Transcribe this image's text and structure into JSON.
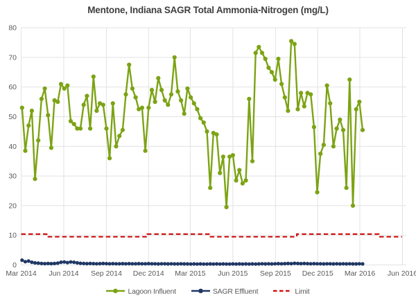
{
  "title": "Mentone, Indiana SAGR Total Ammonia-Nitrogen (mg/L)",
  "colors": {
    "influent": "#7CA314",
    "effluent": "#1F3864",
    "limit": "#CE1111",
    "grid": "#E2E2E2",
    "axis_text": "#595959",
    "title_text": "#3F3F3F",
    "background": "#FFFFFF"
  },
  "legend": {
    "items": [
      {
        "label": "Lagoon Influent",
        "series": "influent",
        "swatch": "line-dot"
      },
      {
        "label": "SAGR Effluent",
        "series": "effluent",
        "swatch": "line-dot"
      },
      {
        "label": "Limit",
        "series": "limit",
        "swatch": "dashed-line"
      }
    ]
  },
  "chart_data": {
    "type": "line",
    "title": "Mentone, Indiana SAGR Total Ammonia-Nitrogen (mg/L)",
    "ylabel": "",
    "xlabel": "",
    "grid": true,
    "legend_position": "bottom",
    "y_axis": {
      "min": 0,
      "max": 80,
      "ticks": [
        0,
        10,
        20,
        30,
        40,
        50,
        60,
        70,
        80
      ]
    },
    "x_axis": {
      "tick_labels": [
        "Mar 2014",
        "Jun 2014",
        "Sep 2014",
        "Dec 2014",
        "Mar 2015",
        "Jun 2015",
        "Sep 2015",
        "Dec 2015",
        "Mar 2016",
        "Jun 2016"
      ],
      "tick_days": [
        0,
        92,
        184,
        275,
        365,
        457,
        549,
        640,
        731,
        823
      ],
      "span_days": 823
    },
    "sampling": "weekly",
    "series": [
      {
        "name": "Lagoon Influent",
        "style": "line-markers",
        "color": "#7CA314",
        "start_day": 2,
        "step_days": 7,
        "values": [
          53,
          38.5,
          47,
          52,
          29,
          42,
          56,
          59.5,
          50.5,
          39.5,
          55.5,
          55,
          61,
          59.5,
          60.5,
          48.5,
          47.5,
          46,
          46,
          54,
          57,
          46,
          63.5,
          52,
          54.5,
          54,
          46,
          36,
          54.5,
          40,
          43.5,
          45.5,
          57.5,
          67.5,
          59.5,
          56.5,
          52.5,
          53,
          38.5,
          53,
          59,
          55,
          63,
          59,
          55.5,
          54,
          57.5,
          70,
          58.5,
          55.5,
          51,
          59.5,
          56.5,
          54.5,
          52.5,
          49.5,
          48,
          45,
          26,
          44.5,
          44,
          31,
          36.5,
          19.5,
          36.5,
          37,
          28.5,
          32,
          27.5,
          28.5,
          56,
          35,
          71.5,
          73.5,
          71.5,
          69.5,
          66.5,
          65,
          62.5,
          69.5,
          61,
          56.5,
          52,
          75.5,
          74.5,
          52.5,
          58,
          53.5,
          58,
          57.5,
          46.5,
          24.5,
          37.5,
          40.5,
          60.5,
          54.5,
          40,
          46,
          49,
          45.5,
          26,
          62.5,
          20,
          52.5,
          55,
          45.5
        ]
      },
      {
        "name": "SAGR Effluent",
        "style": "line-markers",
        "color": "#1F3864",
        "start_day": 2,
        "step_days": 7,
        "values": [
          1.6,
          1.1,
          1.3,
          0.9,
          0.7,
          0.6,
          0.5,
          0.45,
          0.5,
          0.45,
          0.5,
          0.6,
          0.9,
          1.0,
          0.8,
          1.0,
          0.9,
          0.7,
          0.55,
          0.5,
          0.45,
          0.5,
          0.45,
          0.4,
          0.45,
          0.5,
          0.45,
          0.4,
          0.45,
          0.4,
          0.4,
          0.45,
          0.4,
          0.45,
          0.4,
          0.4,
          0.45,
          0.4,
          0.4,
          0.45,
          0.4,
          0.4,
          0.35,
          0.4,
          0.4,
          0.35,
          0.4,
          0.35,
          0.35,
          0.4,
          0.35,
          0.35,
          0.3,
          0.35,
          0.3,
          0.35,
          0.3,
          0.3,
          0.35,
          0.3,
          0.35,
          0.3,
          0.35,
          0.3,
          0.3,
          0.35,
          0.3,
          0.35,
          0.3,
          0.35,
          0.3,
          0.35,
          0.3,
          0.35,
          0.4,
          0.35,
          0.4,
          0.35,
          0.4,
          0.45,
          0.4,
          0.45,
          0.5,
          0.45,
          0.55,
          0.5,
          0.45,
          0.5,
          0.45,
          0.4,
          0.45,
          0.4,
          0.4,
          0.35,
          0.4,
          0.4,
          0.35,
          0.4,
          0.35,
          0.4,
          0.35,
          0.4,
          0.35,
          0.35,
          0.4,
          0.35
        ]
      },
      {
        "name": "Limit",
        "style": "dashed-step",
        "color": "#CE1111",
        "segments": [
          {
            "from_day": 0,
            "to_day": 55,
            "value": 10.4
          },
          {
            "from_day": 55,
            "to_day": 272,
            "value": 9.5
          },
          {
            "from_day": 272,
            "to_day": 407,
            "value": 10.4
          },
          {
            "from_day": 407,
            "to_day": 595,
            "value": 9.5
          },
          {
            "from_day": 595,
            "to_day": 772,
            "value": 10.4
          },
          {
            "from_day": 772,
            "to_day": 822,
            "value": 9.5
          }
        ]
      }
    ]
  }
}
